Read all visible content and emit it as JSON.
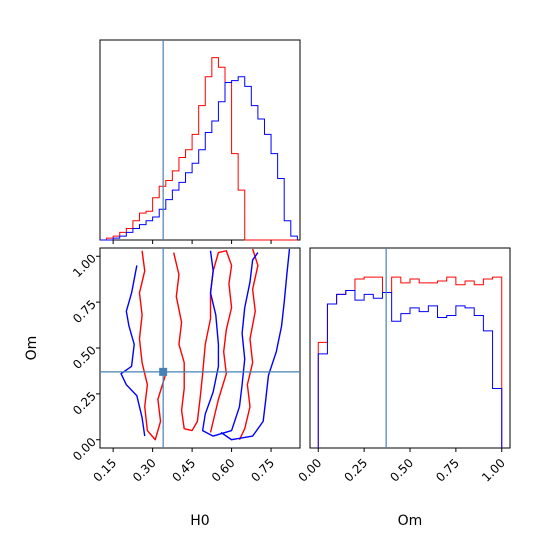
{
  "chart_data": {
    "type": "corner",
    "parameters": [
      "H0",
      "Om"
    ],
    "truth": {
      "H0": 0.34,
      "Om": 0.37
    },
    "colors": {
      "red": "#ff0000",
      "blue": "#0000ff",
      "truth": "#4682b4"
    },
    "axes": {
      "H0": {
        "label": "H0",
        "range": [
          0.1,
          0.86
        ],
        "ticks": [
          "0.15",
          "0.30",
          "0.45",
          "0.60",
          "0.75"
        ],
        "tick_values": [
          0.15,
          0.3,
          0.45,
          0.6,
          0.75
        ]
      },
      "Om": {
        "label": "Om",
        "range": [
          -0.045,
          1.045
        ],
        "ticks": [
          "0.00",
          "0.25",
          "0.50",
          "0.75",
          "1.00"
        ],
        "tick_values": [
          0.0,
          0.25,
          0.5,
          0.75,
          1.0
        ]
      }
    },
    "hist_H0": {
      "bin_edges": [
        0.1,
        0.125,
        0.15,
        0.175,
        0.2,
        0.225,
        0.25,
        0.275,
        0.3,
        0.325,
        0.35,
        0.375,
        0.4,
        0.425,
        0.45,
        0.475,
        0.5,
        0.525,
        0.55,
        0.575,
        0.6,
        0.625,
        0.65,
        0.675,
        0.7,
        0.725,
        0.75,
        0.775,
        0.8,
        0.825,
        0.85
      ],
      "series": [
        {
          "color": "red",
          "values": [
            0.0,
            0.01,
            0.02,
            0.04,
            0.06,
            0.1,
            0.14,
            0.15,
            0.22,
            0.28,
            0.31,
            0.36,
            0.43,
            0.47,
            0.55,
            0.7,
            0.85,
            0.95,
            0.9,
            0.82,
            0.45,
            0.26,
            0.0,
            0.0,
            0.0,
            0.0,
            0.0,
            0.0,
            0.0,
            0.0
          ]
        },
        {
          "color": "blue",
          "values": [
            0.0,
            0.0,
            0.01,
            0.02,
            0.04,
            0.06,
            0.08,
            0.1,
            0.12,
            0.16,
            0.21,
            0.26,
            0.3,
            0.35,
            0.4,
            0.47,
            0.56,
            0.62,
            0.72,
            0.82,
            0.83,
            0.85,
            0.8,
            0.7,
            0.63,
            0.55,
            0.45,
            0.32,
            0.1,
            0.02
          ]
        }
      ]
    },
    "hist_Om": {
      "bin_edges": [
        0.0,
        0.05,
        0.1,
        0.15,
        0.2,
        0.25,
        0.3,
        0.35,
        0.4,
        0.45,
        0.5,
        0.55,
        0.6,
        0.65,
        0.7,
        0.75,
        0.8,
        0.85,
        0.9,
        0.95,
        1.0
      ],
      "series": [
        {
          "color": "red",
          "values": [
            0.55,
            0.75,
            0.8,
            0.82,
            0.88,
            0.89,
            0.89,
            0.81,
            0.89,
            0.86,
            0.88,
            0.86,
            0.86,
            0.87,
            0.89,
            0.85,
            0.87,
            0.85,
            0.88,
            0.89
          ]
        },
        {
          "color": "blue",
          "values": [
            0.49,
            0.75,
            0.8,
            0.82,
            0.77,
            0.8,
            0.78,
            0.81,
            0.66,
            0.7,
            0.73,
            0.71,
            0.74,
            0.68,
            0.69,
            0.74,
            0.73,
            0.69,
            0.61,
            0.31
          ]
        }
      ]
    },
    "contours": [
      {
        "color": "red",
        "level": "inner",
        "points": [
          [
            0.38,
            1.02
          ],
          [
            0.4,
            0.9
          ],
          [
            0.39,
            0.78
          ],
          [
            0.41,
            0.64
          ],
          [
            0.4,
            0.52
          ],
          [
            0.42,
            0.42
          ],
          [
            0.42,
            0.28
          ],
          [
            0.41,
            0.16
          ],
          [
            0.42,
            0.06
          ],
          [
            0.45,
            0.05
          ],
          [
            0.47,
            0.1
          ],
          [
            0.48,
            0.22
          ],
          [
            0.49,
            0.36
          ],
          [
            0.5,
            0.52
          ],
          [
            0.52,
            0.66
          ],
          [
            0.52,
            0.8
          ],
          [
            0.53,
            0.92
          ],
          [
            0.55,
            1.02
          ],
          [
            0.58,
            1.03
          ],
          [
            0.6,
            0.95
          ],
          [
            0.59,
            0.85
          ],
          [
            0.6,
            0.72
          ],
          [
            0.58,
            0.6
          ],
          [
            0.57,
            0.48
          ],
          [
            0.58,
            0.36
          ],
          [
            0.55,
            0.22
          ],
          [
            0.53,
            0.1
          ],
          [
            0.52,
            0.04
          ]
        ]
      },
      {
        "color": "red",
        "level": "outer",
        "points": [
          [
            0.26,
            1.03
          ],
          [
            0.27,
            0.92
          ],
          [
            0.25,
            0.8
          ],
          [
            0.26,
            0.68
          ],
          [
            0.25,
            0.55
          ],
          [
            0.26,
            0.42
          ],
          [
            0.28,
            0.3
          ],
          [
            0.27,
            0.18
          ],
          [
            0.28,
            0.05
          ],
          [
            0.31,
            0.0
          ],
          [
            0.33,
            0.1
          ],
          [
            0.32,
            0.22
          ],
          [
            0.35,
            0.36
          ]
        ]
      },
      {
        "color": "red",
        "level": "outer-right",
        "points": [
          [
            0.68,
            1.04
          ],
          [
            0.7,
            0.95
          ],
          [
            0.68,
            0.82
          ],
          [
            0.69,
            0.7
          ],
          [
            0.67,
            0.55
          ],
          [
            0.68,
            0.42
          ],
          [
            0.66,
            0.3
          ],
          [
            0.67,
            0.18
          ],
          [
            0.65,
            0.06
          ],
          [
            0.63,
            0.0
          ]
        ]
      },
      {
        "color": "blue",
        "level": "inner",
        "points": [
          [
            0.52,
            1.03
          ],
          [
            0.53,
            0.92
          ],
          [
            0.52,
            0.8
          ],
          [
            0.54,
            0.68
          ],
          [
            0.55,
            0.52
          ],
          [
            0.55,
            0.4
          ],
          [
            0.53,
            0.26
          ],
          [
            0.5,
            0.14
          ],
          [
            0.49,
            0.05
          ],
          [
            0.53,
            0.02
          ],
          [
            0.6,
            0.05
          ],
          [
            0.63,
            0.18
          ],
          [
            0.64,
            0.3
          ],
          [
            0.65,
            0.44
          ],
          [
            0.64,
            0.58
          ],
          [
            0.65,
            0.72
          ],
          [
            0.67,
            0.86
          ],
          [
            0.68,
            0.98
          ],
          [
            0.7,
            1.02
          ]
        ]
      },
      {
        "color": "blue",
        "level": "outer",
        "points": [
          [
            0.24,
            0.95
          ],
          [
            0.22,
            0.8
          ],
          [
            0.2,
            0.7
          ],
          [
            0.21,
            0.62
          ],
          [
            0.23,
            0.52
          ],
          [
            0.22,
            0.4
          ],
          [
            0.18,
            0.36
          ],
          [
            0.2,
            0.3
          ],
          [
            0.24,
            0.24
          ],
          [
            0.26,
            0.12
          ],
          [
            0.27,
            0.02
          ]
        ]
      },
      {
        "color": "blue",
        "level": "outer-right",
        "points": [
          [
            0.82,
            1.04
          ],
          [
            0.81,
            0.9
          ],
          [
            0.8,
            0.75
          ],
          [
            0.79,
            0.62
          ],
          [
            0.77,
            0.48
          ],
          [
            0.74,
            0.35
          ],
          [
            0.73,
            0.22
          ],
          [
            0.72,
            0.1
          ],
          [
            0.68,
            0.02
          ],
          [
            0.6,
            0.0
          ],
          [
            0.56,
            0.04
          ]
        ]
      }
    ]
  }
}
